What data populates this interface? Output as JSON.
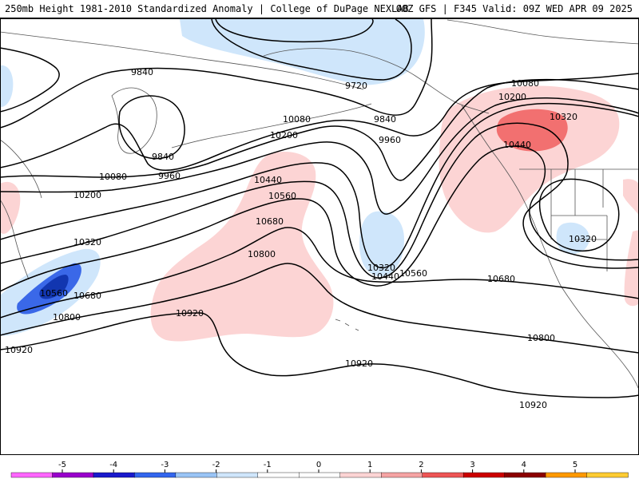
{
  "header": {
    "title": "250mb Height 1981-2010 Standardized Anomaly | College of DuPage NEXLAB",
    "run": "00Z GFS | F345 Valid: 09Z WED APR 09 2025"
  },
  "contour_labels": {
    "c9720": "9720",
    "c9840a": "9840",
    "c9840b": "9840",
    "c9840c": "9840",
    "c9960a": "9960",
    "c9960b": "9960",
    "c10080a": "10080",
    "c10080b": "10080",
    "c10080c": "10080",
    "c10200a": "10200",
    "c10200b": "10200",
    "c10200c": "10200",
    "c10320a": "10320",
    "c10320b": "10320",
    "c10320c": "10320",
    "c10320d": "10320",
    "c10440a": "10440",
    "c10440b": "10440",
    "c10440c": "10440",
    "c10560a": "10560",
    "c10560b": "10560",
    "c10560c": "10560",
    "c10680a": "10680",
    "c10680b": "10680",
    "c10680c": "10680",
    "c10800a": "10800",
    "c10800b": "10800",
    "c10800c": "10800",
    "c10920a": "10920",
    "c10920b": "10920",
    "c10920c": "10920",
    "c10920d": "10920"
  },
  "colorbar": {
    "ticks": [
      "-5",
      "-4",
      "-3",
      "-2",
      "-1",
      "0",
      "1",
      "2",
      "3",
      "4",
      "5"
    ],
    "colors": [
      "#ff66ff",
      "#9900cc",
      "#1a1acc",
      "#3366ee",
      "#99c4f5",
      "#cfe6fb",
      "#ffffff",
      "#ffffff",
      "#fcd4d4",
      "#f5a3a3",
      "#ee5555",
      "#cc0000",
      "#8b0000",
      "#ff9900",
      "#ffcc33"
    ]
  },
  "colors": {
    "neg_light": "#cfe6fb",
    "neg_med": "#3a68e8",
    "neg_dark": "#1236b0",
    "pos_light": "#fcd4d4",
    "pos_med": "#f27070",
    "contour": "#000000",
    "coast": "#555555"
  }
}
